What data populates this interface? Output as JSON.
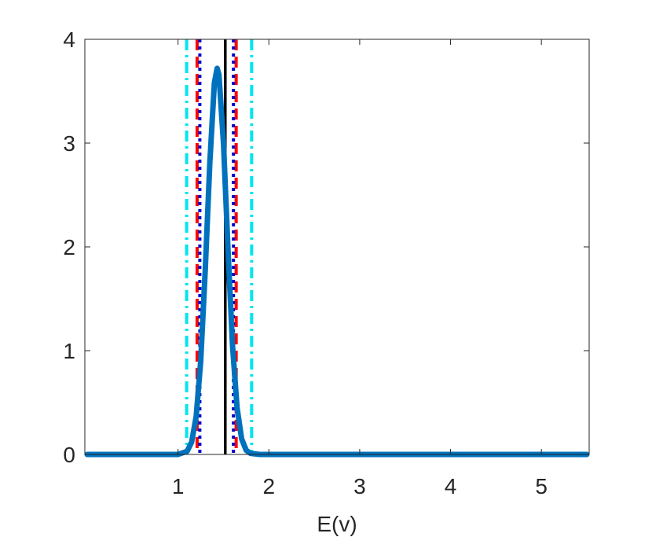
{
  "chart_data": {
    "type": "line",
    "x_label": "E(v)",
    "xlim": [
      0,
      5.5
    ],
    "ylim": [
      0,
      4
    ],
    "xticks": [
      1,
      2,
      3,
      4,
      5
    ],
    "yticks": [
      0,
      1,
      2,
      3,
      4
    ],
    "series": [
      {
        "color": "#0072bd",
        "x": [
          0,
          1.0,
          1.1,
          1.15,
          1.2,
          1.25,
          1.3,
          1.35,
          1.4,
          1.43,
          1.45,
          1.5,
          1.55,
          1.6,
          1.65,
          1.7,
          1.75,
          1.8,
          1.9,
          5.5
        ],
        "values": [
          0,
          0,
          0.03,
          0.12,
          0.37,
          0.9,
          1.78,
          2.81,
          3.58,
          3.72,
          3.66,
          3.0,
          1.98,
          1.05,
          0.45,
          0.15,
          0.04,
          0.01,
          0,
          0
        ]
      }
    ],
    "vlines": [
      {
        "x": 1.095,
        "color": "#00e5ee",
        "style": "dashdot"
      },
      {
        "x": 1.81,
        "color": "#00e5ee",
        "style": "dashdot"
      },
      {
        "x": 1.21,
        "color": "#ff0000",
        "style": "dashed"
      },
      {
        "x": 1.64,
        "color": "#ff0000",
        "style": "dashed"
      },
      {
        "x": 1.24,
        "color": "#0000cd",
        "style": "dotted"
      },
      {
        "x": 1.61,
        "color": "#0000cd",
        "style": "dotted"
      },
      {
        "x": 1.52,
        "color": "#000000",
        "style": "solid"
      }
    ]
  }
}
